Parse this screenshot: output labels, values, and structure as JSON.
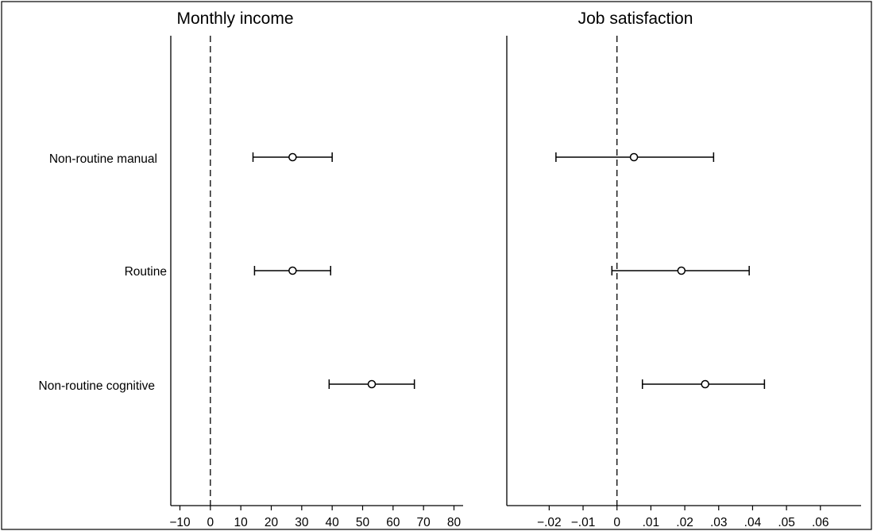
{
  "chart_data": [
    {
      "type": "scatter",
      "title": "Monthly income",
      "categories": [
        "Non-routine manual",
        "Routine",
        "Non-routine cognitive"
      ],
      "estimates": [
        27,
        27,
        53
      ],
      "ci_lower": [
        14,
        14.5,
        39
      ],
      "ci_upper": [
        40,
        39.5,
        67
      ],
      "reference_line": 0,
      "xlim": [
        -13,
        83
      ],
      "xticks": [
        -10,
        0,
        10,
        20,
        30,
        40,
        50,
        60,
        70,
        80
      ],
      "xtick_labels": [
        "−10",
        "0",
        "10",
        "20",
        "30",
        "40",
        "50",
        "60",
        "70",
        "80"
      ],
      "grid": false
    },
    {
      "type": "scatter",
      "title": "Job satisfaction",
      "categories": [
        "Non-routine manual",
        "Routine",
        "Non-routine cognitive"
      ],
      "estimates": [
        0.005,
        0.019,
        0.026
      ],
      "ci_lower": [
        -0.018,
        -0.0015,
        0.0075
      ],
      "ci_upper": [
        0.0285,
        0.039,
        0.0435
      ],
      "reference_line": 0,
      "xlim": [
        -0.0325,
        0.072
      ],
      "xticks": [
        -0.02,
        -0.01,
        0,
        0.01,
        0.02,
        0.03,
        0.04,
        0.05,
        0.06
      ],
      "xtick_labels": [
        "−.02",
        "−.01",
        "0",
        ".01",
        ".02",
        ".03",
        ".04",
        ".05",
        ".06"
      ],
      "grid": false
    }
  ],
  "colors": {
    "marks": "#000000",
    "background": "#ffffff"
  }
}
